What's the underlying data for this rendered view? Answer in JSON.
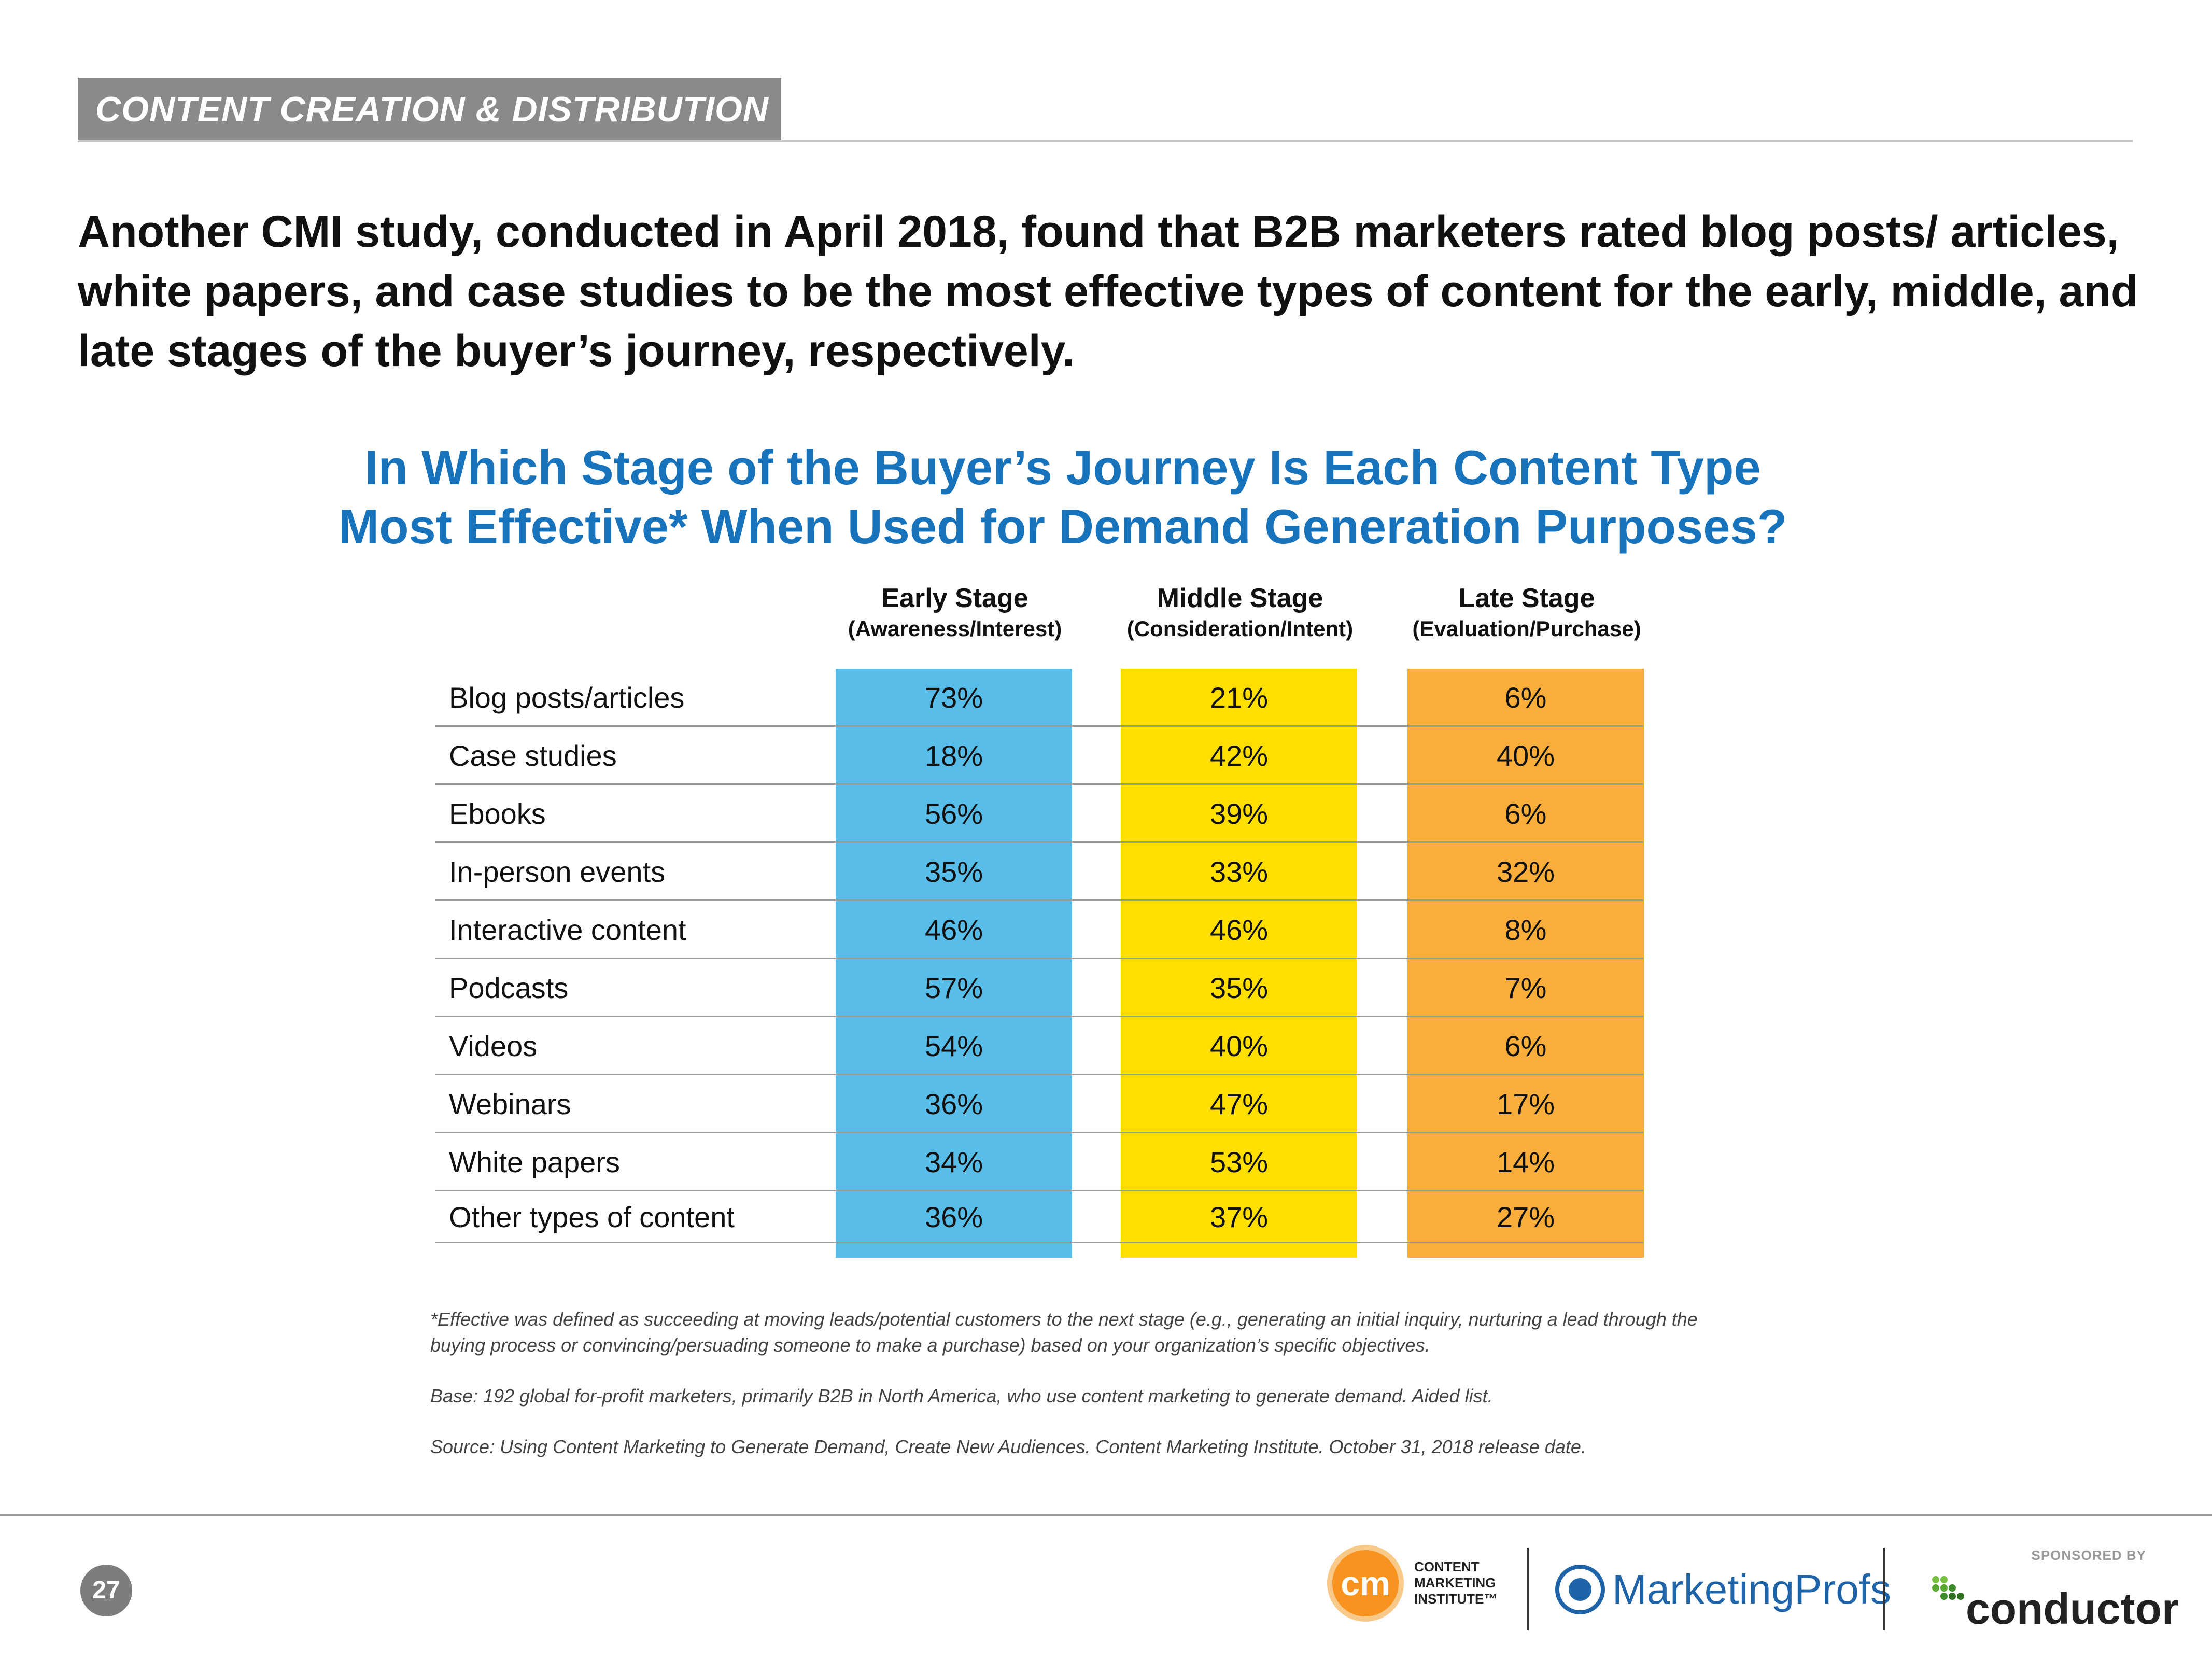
{
  "section": {
    "label": "CONTENT CREATION & DISTRIBUTION"
  },
  "headline": "Another CMI study, conducted in April 2018, found that B2B marketers rated blog posts/ articles, white papers, and case studies to be the most effective types of content for the early, middle, and late stages of the buyer’s journey, respectively.",
  "chart_data": {
    "type": "table",
    "title_line1": "In Which Stage of the Buyer’s Journey Is Each Content Type",
    "title_line2": "Most Effective* When Used for Demand Generation Purposes?",
    "columns": [
      {
        "name": "Early Stage",
        "sub": "(Awareness/Interest)",
        "color": "#58bde9"
      },
      {
        "name": "Middle Stage",
        "sub": "(Consideration/Intent)",
        "color": "#ffde00"
      },
      {
        "name": "Late Stage",
        "sub": "(Evaluation/Purchase)",
        "color": "#f9ae3b"
      }
    ],
    "rows": [
      {
        "label": "Blog posts/articles",
        "values": [
          "73%",
          "21%",
          "6%"
        ]
      },
      {
        "label": "Case studies",
        "values": [
          "18%",
          "42%",
          "40%"
        ]
      },
      {
        "label": "Ebooks",
        "values": [
          "56%",
          "39%",
          "6%"
        ]
      },
      {
        "label": "In-person events",
        "values": [
          "35%",
          "33%",
          "32%"
        ]
      },
      {
        "label": "Interactive content",
        "values": [
          "46%",
          "46%",
          "8%"
        ]
      },
      {
        "label": "Podcasts",
        "values": [
          "57%",
          "35%",
          "7%"
        ]
      },
      {
        "label": "Videos",
        "values": [
          "54%",
          "40%",
          "6%"
        ]
      },
      {
        "label": "Webinars",
        "values": [
          "36%",
          "47%",
          "17%"
        ]
      },
      {
        "label": "White papers",
        "values": [
          "34%",
          "53%",
          "14%"
        ]
      },
      {
        "label": "Other types of content",
        "values": [
          "36%",
          "37%",
          "27%"
        ]
      }
    ]
  },
  "notes": {
    "definition": "*Effective was defined as succeeding at moving leads/potential customers to the next stage (e.g., generating an initial inquiry, nurturing a lead through the buying process  or convincing/persuading someone to make a purchase) based on your organization’s specific objectives.",
    "base": "Base: 192 global for-profit marketers, primarily B2B in North America, who use content marketing to generate demand. Aided list.",
    "source": "Source: Using Content Marketing to Generate Demand, Create New Audiences. Content Marketing Institute. October 31, 2018 release date."
  },
  "footer": {
    "page_number": "27",
    "cmi_mark": "cm",
    "cmi_line1": "CONTENT",
    "cmi_line2": "MARKETING",
    "cmi_line3": "INSTITUTE™",
    "marketingprofs": "MarketingProfs",
    "sponsored_by": "SPONSORED BY",
    "conductor": "conductor"
  }
}
